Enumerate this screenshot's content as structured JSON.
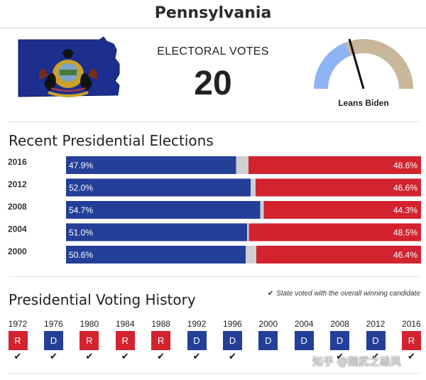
{
  "header": {
    "title": "Pennsylvania"
  },
  "electoral": {
    "label": "ELECTORAL VOTES",
    "value": "20"
  },
  "gauge": {
    "label": "Leans Biden",
    "dem_color": "#8fb4f5",
    "rep_color": "#c9b79c"
  },
  "colors": {
    "dem": "#233f97",
    "rep": "#d2232f",
    "other": "#cfcfcf"
  },
  "sections": {
    "recent_title": "Recent Presidential Elections",
    "history_title": "Presidential Voting History",
    "history_note": "State voted with the overall winning candidate"
  },
  "chart_data": {
    "type": "bar",
    "stacked": true,
    "orientation": "horizontal",
    "categories": [
      "2016",
      "2012",
      "2008",
      "2004",
      "2000"
    ],
    "series": [
      {
        "values": [
          47.9,
          52.0,
          54.7,
          51.0,
          50.6
        ],
        "labels": [
          "47.9%",
          "52.0%",
          "54.7%",
          "51.0%",
          "50.6%"
        ]
      },
      {
        "values": [
          3.5,
          1.4,
          1.0,
          0.5,
          3.0
        ]
      },
      {
        "values": [
          48.6,
          46.6,
          44.3,
          48.5,
          46.4
        ],
        "labels": [
          "48.6%",
          "46.6%",
          "44.3%",
          "48.5%",
          "46.4%"
        ]
      }
    ],
    "xlim": [
      0,
      100
    ]
  },
  "history": [
    {
      "year": "1972",
      "party": "R",
      "winner": true
    },
    {
      "year": "1976",
      "party": "D",
      "winner": true
    },
    {
      "year": "1980",
      "party": "R",
      "winner": true
    },
    {
      "year": "1984",
      "party": "R",
      "winner": true
    },
    {
      "year": "1988",
      "party": "R",
      "winner": true
    },
    {
      "year": "1992",
      "party": "D",
      "winner": true
    },
    {
      "year": "1996",
      "party": "D",
      "winner": true
    },
    {
      "year": "2000",
      "party": "D",
      "winner": false
    },
    {
      "year": "2004",
      "party": "D",
      "winner": false
    },
    {
      "year": "2008",
      "party": "D",
      "winner": true
    },
    {
      "year": "2012",
      "party": "D",
      "winner": true
    },
    {
      "year": "2016",
      "party": "R",
      "winner": true
    }
  ],
  "watermark": "知乎 @魏武之雄风"
}
